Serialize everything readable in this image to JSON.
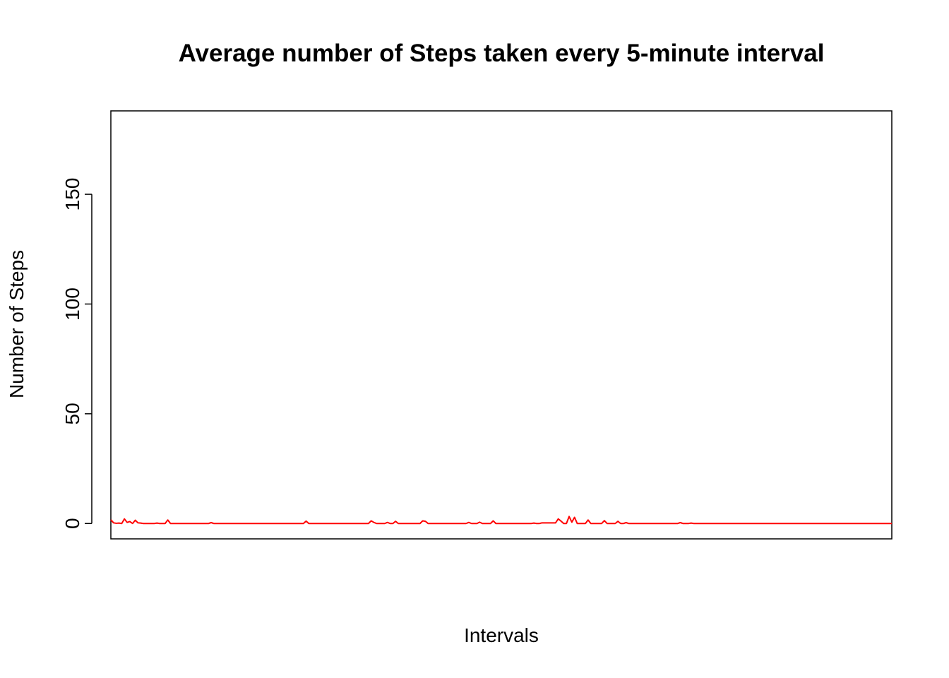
{
  "chart_data": {
    "type": "line",
    "title": "Average number of Steps taken every 5-minute interval",
    "xlabel": "Intervals",
    "ylabel": "Number of Steps",
    "xlim": [
      0,
      288
    ],
    "ylim": [
      -7,
      188
    ],
    "yticks": [
      0,
      50,
      100,
      150
    ],
    "xticks": [],
    "grid": false,
    "legend": "none",
    "line_color": "#ff0000",
    "axis_color": "#000000",
    "series": [
      {
        "values": [
          1.7,
          0.3,
          0.1,
          0.2,
          0.0,
          2.1,
          0.5,
          0.9,
          0.0,
          1.5,
          0.3,
          0.2,
          0.0,
          0.0,
          0.0,
          0.0,
          0.0,
          0.2,
          0.0,
          0.0,
          0.0,
          1.6,
          0.0,
          0.0,
          0.0,
          0.0,
          0.0,
          0.0,
          0.0,
          0.0,
          0.0,
          0.0,
          0.0,
          0.0,
          0.0,
          0.0,
          0.0,
          0.4,
          0.0,
          0.0,
          0.0,
          0.0,
          0.0,
          0.0,
          0.0,
          0.0,
          0.0,
          0.0,
          0.0,
          0.0,
          0.0,
          0.0,
          0.0,
          0.0,
          0.0,
          0.0,
          0.0,
          0.0,
          0.0,
          0.0,
          0.0,
          0.0,
          0.0,
          0.0,
          0.0,
          0.0,
          0.0,
          0.0,
          0.0,
          0.0,
          0.0,
          0.0,
          1.1,
          0.0,
          0.0,
          0.0,
          0.0,
          0.0,
          0.0,
          0.0,
          0.0,
          0.0,
          0.0,
          0.0,
          0.0,
          0.0,
          0.0,
          0.0,
          0.0,
          0.0,
          0.0,
          0.0,
          0.0,
          0.0,
          0.0,
          0.0,
          1.2,
          0.5,
          0.0,
          0.0,
          0.0,
          0.0,
          0.5,
          0.0,
          0.0,
          1.0,
          0.0,
          0.0,
          0.0,
          0.0,
          0.0,
          0.0,
          0.0,
          0.0,
          0.0,
          1.2,
          1.0,
          0.0,
          0.0,
          0.0,
          0.0,
          0.0,
          0.0,
          0.0,
          0.0,
          0.0,
          0.0,
          0.0,
          0.0,
          0.0,
          0.0,
          0.0,
          0.5,
          0.0,
          0.0,
          0.0,
          0.6,
          0.0,
          0.0,
          0.0,
          0.0,
          1.2,
          0.0,
          0.0,
          0.0,
          0.0,
          0.0,
          0.0,
          0.0,
          0.0,
          0.0,
          0.0,
          0.0,
          0.0,
          0.0,
          0.0,
          0.2,
          0.0,
          0.0,
          0.3,
          0.3,
          0.3,
          0.3,
          0.3,
          0.3,
          2.1,
          1.1,
          0.0,
          0.0,
          3.2,
          0.6,
          2.8,
          0.0,
          0.0,
          0.0,
          0.0,
          1.6,
          0.0,
          0.0,
          0.0,
          0.0,
          0.0,
          1.3,
          0.0,
          0.0,
          0.0,
          0.0,
          1.0,
          0.0,
          0.0,
          0.4,
          0.0,
          0.0,
          0.0,
          0.0,
          0.0,
          0.0,
          0.0,
          0.0,
          0.0,
          0.0,
          0.0,
          0.0,
          0.0,
          0.0,
          0.0,
          0.0,
          0.0,
          0.0,
          0.0,
          0.4,
          0.0,
          0.0,
          0.0,
          0.2,
          0.0,
          0.0,
          0.0,
          0.0,
          0.0,
          0.0,
          0.0,
          0.0,
          0.0,
          0.0,
          0.0,
          0.0,
          0.0,
          0.0,
          0.0,
          0.0,
          0.0,
          0.0,
          0.0,
          0.0,
          0.0,
          0.0,
          0.0,
          0.0,
          0.0,
          0.0,
          0.0,
          0.0,
          0.0,
          0.0,
          0.0,
          0.0,
          0.0,
          0.0,
          0.0,
          0.0,
          0.0,
          0.0,
          0.0,
          0.0,
          0.0,
          0.0,
          0.0,
          0.0,
          0.0,
          0.0,
          0.0,
          0.0,
          0.0,
          0.0,
          0.0,
          0.0,
          0.0,
          0.0,
          0.0,
          0.0,
          0.0,
          0.0,
          0.0,
          0.0,
          0.0,
          0.0,
          0.0,
          0.0,
          0.0,
          0.0,
          0.0,
          0.0,
          0.0,
          0.0,
          0.0,
          0.0,
          0.0,
          0.0
        ],
        "color": "#ff0000"
      }
    ]
  }
}
